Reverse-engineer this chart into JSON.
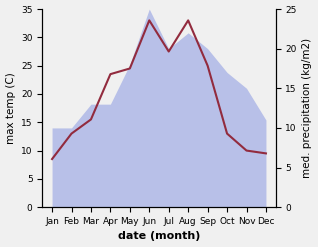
{
  "months": [
    "Jan",
    "Feb",
    "Mar",
    "Apr",
    "May",
    "Jun",
    "Jul",
    "Aug",
    "Sep",
    "Oct",
    "Nov",
    "Dec"
  ],
  "temperature": [
    8.5,
    13.0,
    15.5,
    23.5,
    24.5,
    33.0,
    27.5,
    33.0,
    25.0,
    13.0,
    10.0,
    9.5
  ],
  "precipitation": [
    10.0,
    10.0,
    13.0,
    13.0,
    18.0,
    25.0,
    20.0,
    22.0,
    20.0,
    17.0,
    15.0,
    11.0
  ],
  "temp_color": "#922B3E",
  "precip_color_fill": "#b8c0e8",
  "temp_ylim": [
    0,
    35
  ],
  "precip_ylim": [
    0,
    25
  ],
  "temp_yticks": [
    0,
    5,
    10,
    15,
    20,
    25,
    30,
    35
  ],
  "precip_yticks": [
    0,
    5,
    10,
    15,
    20,
    25
  ],
  "xlabel": "date (month)",
  "ylabel_left": "max temp (C)",
  "ylabel_right": "med. precipitation (kg/m2)",
  "axis_fontsize": 7.5,
  "tick_fontsize": 6.5,
  "xlabel_fontsize": 8,
  "bg_color": "#f0f0f0"
}
